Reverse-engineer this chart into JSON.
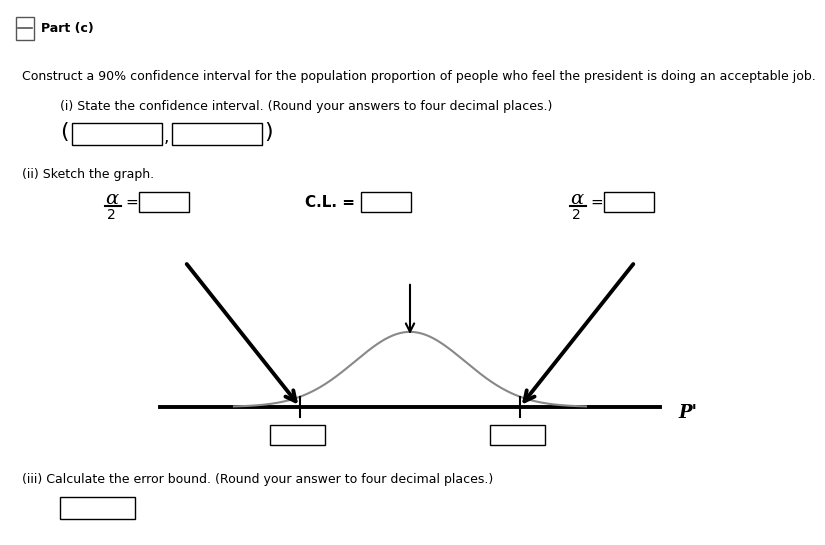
{
  "title_bar_text": "⊟ Part (c)",
  "title_bar_bg": "#d3d8e0",
  "main_text": "Construct a 90% confidence interval for the population proportion of people who feel the president is doing an acceptable job.",
  "sub_i_text": "(i) State the confidence interval. (Round your answers to four decimal places.)",
  "sub_ii_text": "(ii) Sketch the graph.",
  "sub_iii_text": "(iii) Calculate the error bound. (Round your answer to four decimal places.)",
  "p_prime_label": "P'",
  "bg_color": "#ffffff",
  "alpha_label": "α",
  "cl_label": "C.L. =",
  "fraction_denom": "2",
  "equals": "=",
  "title_symbol": "⊟"
}
